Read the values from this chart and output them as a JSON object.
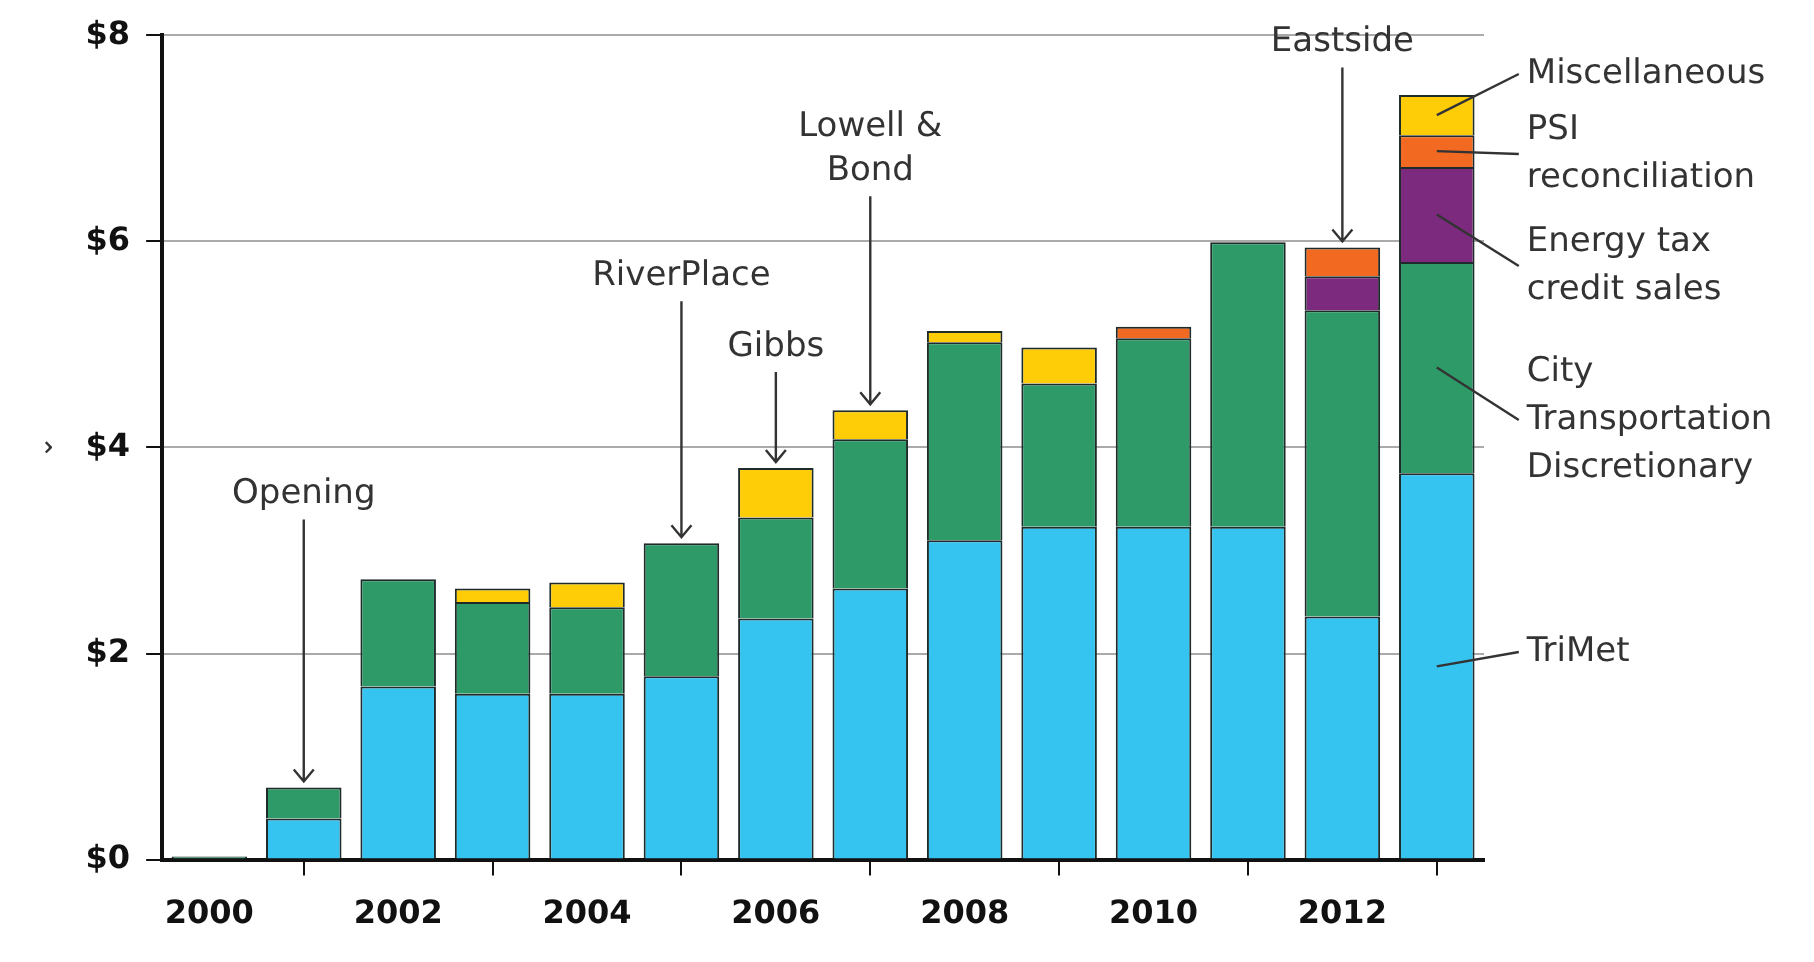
{
  "chart_data": {
    "type": "bar",
    "stacked": true,
    "ylabel": "⌄",
    "x": [
      2000,
      2001,
      2002,
      2003,
      2004,
      2005,
      2006,
      2007,
      2008,
      2009,
      2010,
      2011,
      2012,
      2013
    ],
    "xlim": [
      1999.5,
      2013.5
    ],
    "xticks": [
      2000,
      2002,
      2004,
      2006,
      2008,
      2010,
      2012
    ],
    "ylim": [
      0,
      8
    ],
    "yticks": [
      {
        "value": 0,
        "label": "$0"
      },
      {
        "value": 2,
        "label": "$2"
      },
      {
        "value": 4,
        "label": "$4"
      },
      {
        "value": 6,
        "label": "$6"
      },
      {
        "value": 8,
        "label": "$8"
      }
    ],
    "grid": "y",
    "legend": false,
    "series": [
      {
        "name": "TriMet",
        "color": "#35c4f0",
        "values": [
          null,
          0.4,
          1.68,
          1.61,
          1.61,
          1.78,
          2.34,
          2.63,
          3.1,
          3.23,
          3.23,
          3.23,
          2.36,
          3.75
        ]
      },
      {
        "name": "City Transportation Discretionary",
        "color": "#2e9a68",
        "values": [
          0.03,
          0.3,
          1.04,
          0.89,
          0.84,
          1.29,
          0.98,
          1.45,
          1.92,
          1.39,
          1.83,
          2.76,
          2.97,
          2.05
        ]
      },
      {
        "name": "Energy tax credit sales",
        "color": "#7b2a7e",
        "values": [
          null,
          null,
          null,
          null,
          null,
          null,
          null,
          null,
          null,
          null,
          null,
          null,
          0.33,
          0.92
        ]
      },
      {
        "name": "PSI reconciliation",
        "color": "#f26a22",
        "values": [
          null,
          null,
          null,
          null,
          null,
          null,
          null,
          null,
          null,
          null,
          0.11,
          null,
          0.28,
          0.31
        ]
      },
      {
        "name": "Miscellaneous",
        "color": "#fecd08",
        "values": [
          null,
          null,
          null,
          0.13,
          0.24,
          null,
          0.48,
          0.28,
          0.11,
          0.35,
          null,
          null,
          null,
          0.39
        ]
      }
    ],
    "annotations": [
      {
        "text": "Opening",
        "x": 2001,
        "y": 0.7
      },
      {
        "text": "RiverPlace",
        "x": 2005,
        "y": 3.07
      },
      {
        "text": "Gibbs",
        "x": 2006,
        "y": 3.8
      },
      {
        "text": "Lowell & Bond",
        "x": 2007,
        "y": 4.36
      },
      {
        "text": "Eastside",
        "x": 2012,
        "y": 5.94
      }
    ]
  }
}
